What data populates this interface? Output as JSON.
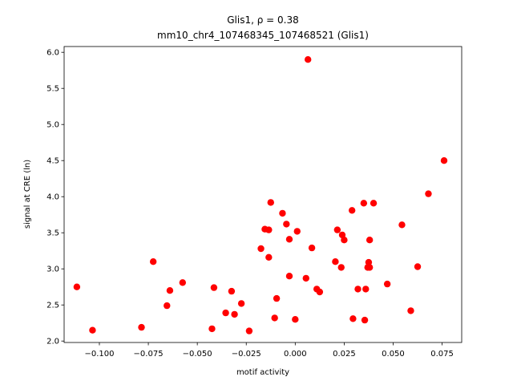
{
  "chart_data": {
    "type": "scatter",
    "title": "Glis1, ρ = 0.38",
    "subtitle": "mm10_chr4_107468345_107468521 (Glis1)",
    "xlabel": "motif activity",
    "ylabel": "signal at CRE (ln)",
    "xlim": [
      -0.118,
      0.085
    ],
    "ylim": [
      1.98,
      6.08
    ],
    "xticks": [
      -0.1,
      -0.075,
      -0.05,
      -0.025,
      0.0,
      0.025,
      0.05,
      0.075
    ],
    "xtick_labels": [
      "−0.100",
      "−0.075",
      "−0.050",
      "−0.025",
      "0.000",
      "0.025",
      "0.050",
      "0.075"
    ],
    "yticks": [
      2.0,
      2.5,
      3.0,
      3.5,
      4.0,
      4.5,
      5.0,
      5.5,
      6.0
    ],
    "ytick_labels": [
      "2.0",
      "2.5",
      "3.0",
      "3.5",
      "4.0",
      "4.5",
      "5.0",
      "5.5",
      "6.0"
    ],
    "grid": false,
    "marker_color": "#ff0000",
    "points": [
      {
        "x": -0.1115,
        "y": 2.75
      },
      {
        "x": -0.1035,
        "y": 2.15
      },
      {
        "x": -0.0785,
        "y": 2.19
      },
      {
        "x": -0.0725,
        "y": 3.1
      },
      {
        "x": -0.0655,
        "y": 2.49
      },
      {
        "x": -0.064,
        "y": 2.7
      },
      {
        "x": -0.0575,
        "y": 2.81
      },
      {
        "x": -0.0425,
        "y": 2.17
      },
      {
        "x": -0.0415,
        "y": 2.74
      },
      {
        "x": -0.0355,
        "y": 2.39
      },
      {
        "x": -0.0325,
        "y": 2.69
      },
      {
        "x": -0.031,
        "y": 2.37
      },
      {
        "x": -0.0275,
        "y": 2.52
      },
      {
        "x": -0.0235,
        "y": 2.14
      },
      {
        "x": -0.0175,
        "y": 3.28
      },
      {
        "x": -0.0155,
        "y": 3.55
      },
      {
        "x": -0.0135,
        "y": 3.54
      },
      {
        "x": -0.0135,
        "y": 3.16
      },
      {
        "x": -0.0125,
        "y": 3.92
      },
      {
        "x": -0.0105,
        "y": 2.32
      },
      {
        "x": -0.0095,
        "y": 2.59
      },
      {
        "x": -0.0065,
        "y": 3.77
      },
      {
        "x": -0.0045,
        "y": 3.62
      },
      {
        "x": -0.003,
        "y": 3.41
      },
      {
        "x": -0.003,
        "y": 2.9
      },
      {
        "x": 0.0,
        "y": 2.3
      },
      {
        "x": 0.001,
        "y": 3.52
      },
      {
        "x": 0.0055,
        "y": 2.87
      },
      {
        "x": 0.0065,
        "y": 5.9
      },
      {
        "x": 0.0085,
        "y": 3.29
      },
      {
        "x": 0.011,
        "y": 2.72
      },
      {
        "x": 0.0125,
        "y": 2.68
      },
      {
        "x": 0.0205,
        "y": 3.1
      },
      {
        "x": 0.0215,
        "y": 3.54
      },
      {
        "x": 0.0235,
        "y": 3.02
      },
      {
        "x": 0.024,
        "y": 3.47
      },
      {
        "x": 0.025,
        "y": 3.4
      },
      {
        "x": 0.029,
        "y": 3.81
      },
      {
        "x": 0.0295,
        "y": 2.31
      },
      {
        "x": 0.032,
        "y": 2.72
      },
      {
        "x": 0.035,
        "y": 3.91
      },
      {
        "x": 0.0355,
        "y": 2.29
      },
      {
        "x": 0.036,
        "y": 2.72
      },
      {
        "x": 0.037,
        "y": 3.02
      },
      {
        "x": 0.0375,
        "y": 3.09
      },
      {
        "x": 0.038,
        "y": 3.02
      },
      {
        "x": 0.038,
        "y": 3.4
      },
      {
        "x": 0.04,
        "y": 3.91
      },
      {
        "x": 0.047,
        "y": 2.79
      },
      {
        "x": 0.0545,
        "y": 3.61
      },
      {
        "x": 0.059,
        "y": 2.42
      },
      {
        "x": 0.0625,
        "y": 3.03
      },
      {
        "x": 0.068,
        "y": 4.04
      },
      {
        "x": 0.076,
        "y": 4.5
      }
    ]
  }
}
